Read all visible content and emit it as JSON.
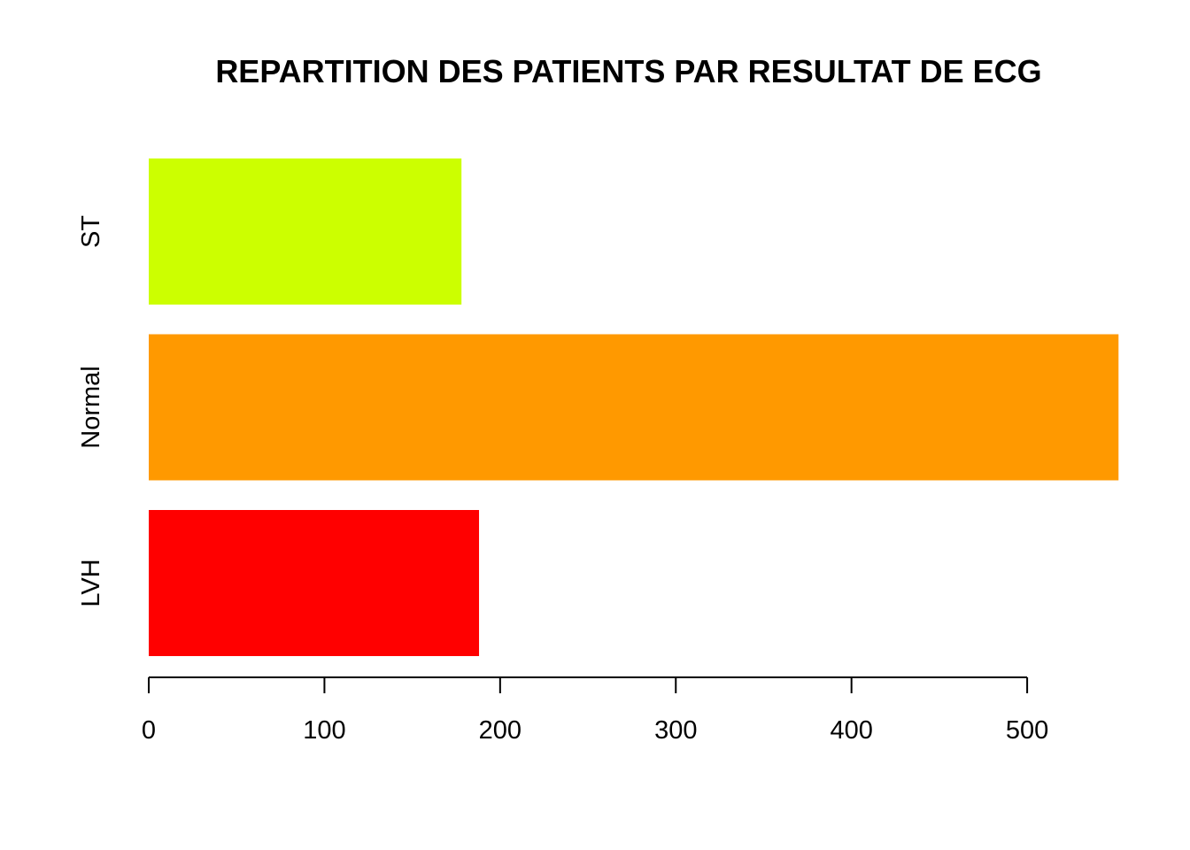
{
  "chart_data": {
    "type": "bar",
    "orientation": "horizontal",
    "title": "REPARTITION DES PATIENTS PAR RESULTAT DE ECG",
    "xlabel": "",
    "ylabel": "",
    "categories": [
      "LVH",
      "Normal",
      "ST"
    ],
    "values": [
      188,
      552,
      178
    ],
    "colors": [
      "#FF0000",
      "#FF9900",
      "#CCFF00"
    ],
    "xlim": [
      0,
      552
    ],
    "x_ticks": [
      0,
      100,
      200,
      300,
      400,
      500
    ],
    "x_tick_labels": [
      "0",
      "100",
      "200",
      "300",
      "400",
      "500"
    ],
    "grid": false,
    "legend": "none"
  }
}
